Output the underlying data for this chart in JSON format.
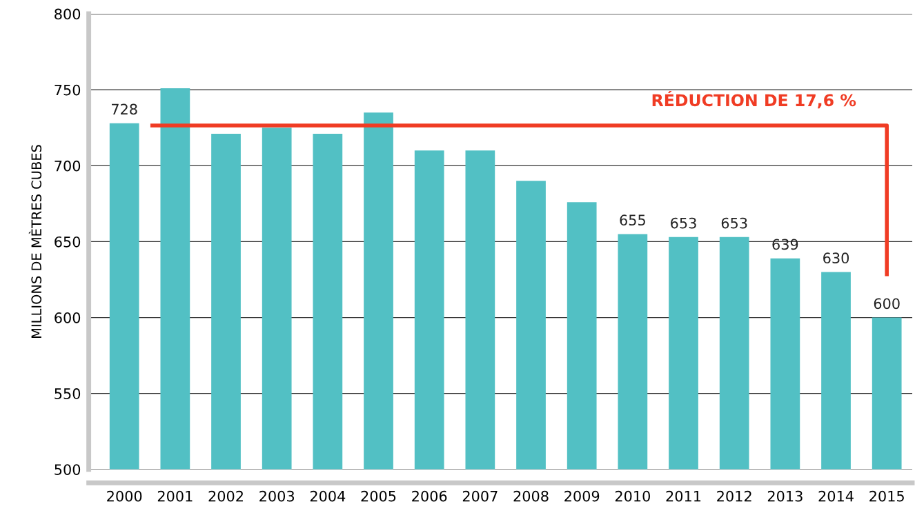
{
  "chart_data": {
    "type": "bar",
    "ylabel": "MILLIONS DE MÈTRES CUBES",
    "categories": [
      "2000",
      "2001",
      "2002",
      "2003",
      "2004",
      "2005",
      "2006",
      "2007",
      "2008",
      "2009",
      "2010",
      "2011",
      "2012",
      "2013",
      "2014",
      "2015"
    ],
    "values": [
      728,
      751,
      721,
      725,
      721,
      735,
      710,
      710,
      690,
      676,
      655,
      653,
      653,
      639,
      630,
      600
    ],
    "value_labels": [
      "728",
      null,
      null,
      null,
      null,
      null,
      null,
      null,
      null,
      null,
      "655",
      "653",
      "653",
      "639",
      "630",
      "600"
    ],
    "color": "#52c0c4",
    "ylim": [
      500,
      800
    ],
    "yticks": [
      500,
      550,
      600,
      650,
      700,
      750,
      800
    ],
    "grid": "y",
    "annotations": [
      "RÉDUCTION DE 17,6 %"
    ]
  }
}
